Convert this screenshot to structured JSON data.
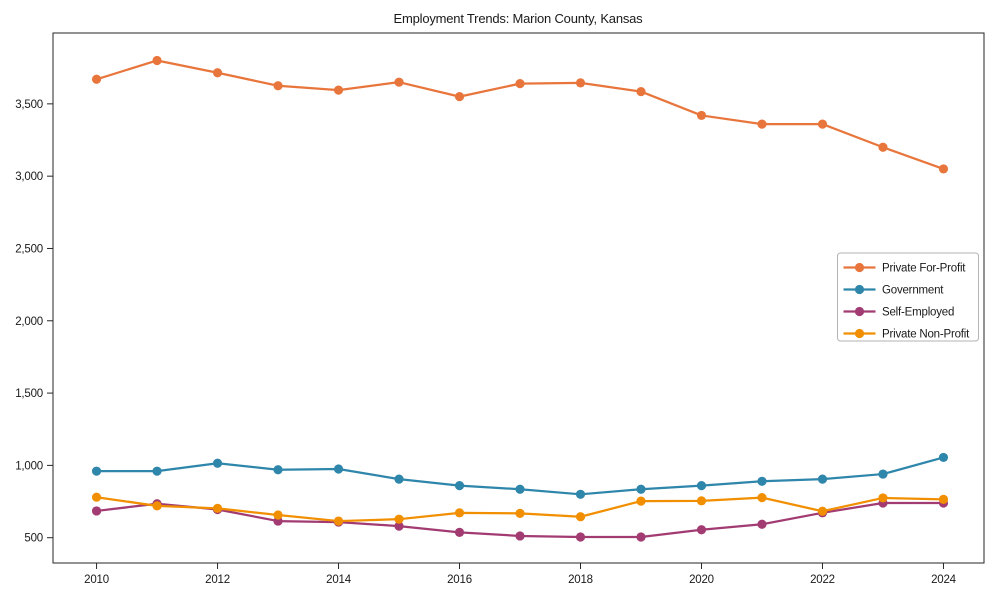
{
  "chart_data": {
    "type": "line",
    "title": "Employment Trends: Marion County, Kansas",
    "xlabel": "",
    "ylabel": "",
    "x": [
      2010,
      2011,
      2012,
      2013,
      2014,
      2015,
      2016,
      2017,
      2018,
      2019,
      2020,
      2021,
      2022,
      2023,
      2024
    ],
    "x_tick_labels": [
      "2010",
      "2012",
      "2014",
      "2016",
      "2018",
      "2020",
      "2022",
      "2024"
    ],
    "x_ticks": [
      2010,
      2012,
      2014,
      2016,
      2018,
      2020,
      2022,
      2024
    ],
    "y_ticks": [
      500,
      1000,
      1500,
      2000,
      2500,
      3000,
      3500
    ],
    "y_tick_labels": [
      "500",
      "1,000",
      "1,500",
      "2,000",
      "2,500",
      "3,000",
      "3,500"
    ],
    "xlim": [
      2009.28,
      2024.67
    ],
    "ylim": [
      325,
      3990
    ],
    "grid": false,
    "frame": true,
    "legend_position": "center-right",
    "axis_color": "#262626",
    "text_color": "#1a1a1a",
    "legend_border_color": "#b3b3b3",
    "series": [
      {
        "name": "Private For-Profit",
        "color": "#E8763C",
        "values": [
          3670,
          3800,
          3715,
          3625,
          3595,
          3650,
          3550,
          3640,
          3645,
          3585,
          3420,
          3360,
          3360,
          3200,
          3050
        ]
      },
      {
        "name": "Government",
        "color": "#2E86AB",
        "values": [
          960,
          960,
          1015,
          970,
          975,
          905,
          860,
          835,
          800,
          835,
          860,
          890,
          905,
          940,
          1055
        ]
      },
      {
        "name": "Self-Employed",
        "color": "#A23B72",
        "values": [
          685,
          735,
          695,
          615,
          608,
          580,
          537,
          512,
          505,
          505,
          555,
          593,
          672,
          740,
          740
        ]
      },
      {
        "name": "Private Non-Profit",
        "color": "#F18F01",
        "values": [
          780,
          720,
          703,
          657,
          615,
          628,
          672,
          668,
          645,
          753,
          755,
          777,
          683,
          775,
          765
        ]
      }
    ]
  }
}
